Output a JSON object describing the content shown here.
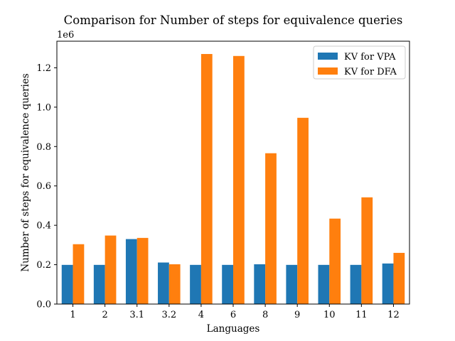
{
  "chart_data": {
    "type": "bar",
    "title": "Comparison for Number of steps for equivalence queries",
    "xlabel": "Languages",
    "ylabel": "Number of steps for equivalence queries",
    "y_multiplier_label": "1e6",
    "ylim": [
      0,
      1.335
    ],
    "yticks": [
      "0.0",
      "0.2",
      "0.4",
      "0.6",
      "0.8",
      "1.0",
      "1.2"
    ],
    "ytick_values": [
      0,
      0.2,
      0.4,
      0.6,
      0.8,
      1.0,
      1.2
    ],
    "categories": [
      "1",
      "2",
      "3.1",
      "3.2",
      "4",
      "6",
      "8",
      "9",
      "10",
      "11",
      "12"
    ],
    "grid": false,
    "legend_position": "top-right",
    "series": [
      {
        "name": "KV for VPA",
        "color": "#1f77b4",
        "values": [
          0.199,
          0.199,
          0.33,
          0.211,
          0.199,
          0.199,
          0.202,
          0.199,
          0.199,
          0.199,
          0.206
        ]
      },
      {
        "name": "KV for DFA",
        "color": "#ff7f0e",
        "values": [
          0.304,
          0.348,
          0.336,
          0.202,
          1.27,
          1.26,
          0.766,
          0.946,
          0.434,
          0.542,
          0.26
        ]
      }
    ]
  }
}
